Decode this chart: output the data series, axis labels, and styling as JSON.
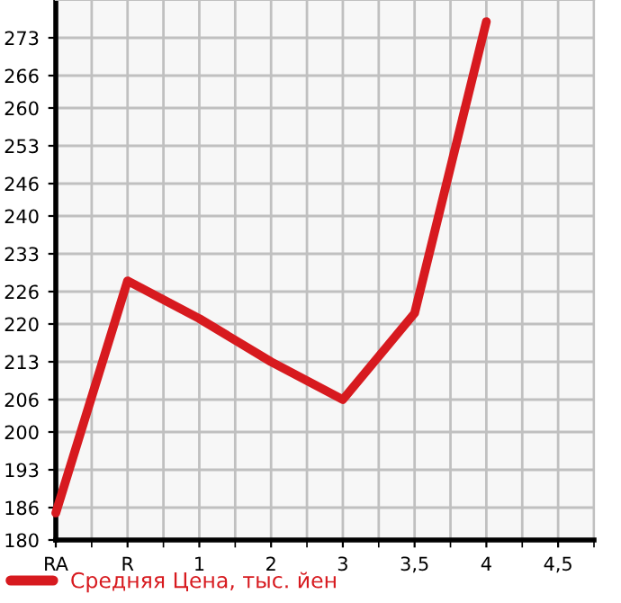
{
  "chart_data": {
    "type": "line",
    "categories": [
      "RA",
      "R",
      "1",
      "2",
      "3",
      "3,5",
      "4",
      "4,5"
    ],
    "series": [
      {
        "name": "Средняя Цена, тыс. йен",
        "color": "#d71a1f",
        "values": [
          185,
          228,
          221,
          213,
          206,
          222,
          276,
          null
        ]
      }
    ],
    "ylim": [
      180,
      280
    ],
    "yticks": [
      180,
      186,
      193,
      200,
      206,
      213,
      220,
      226,
      233,
      240,
      246,
      253,
      260,
      266,
      273
    ],
    "grid": true,
    "legend": "bottom left",
    "marker": "none",
    "line_style": "solid"
  }
}
